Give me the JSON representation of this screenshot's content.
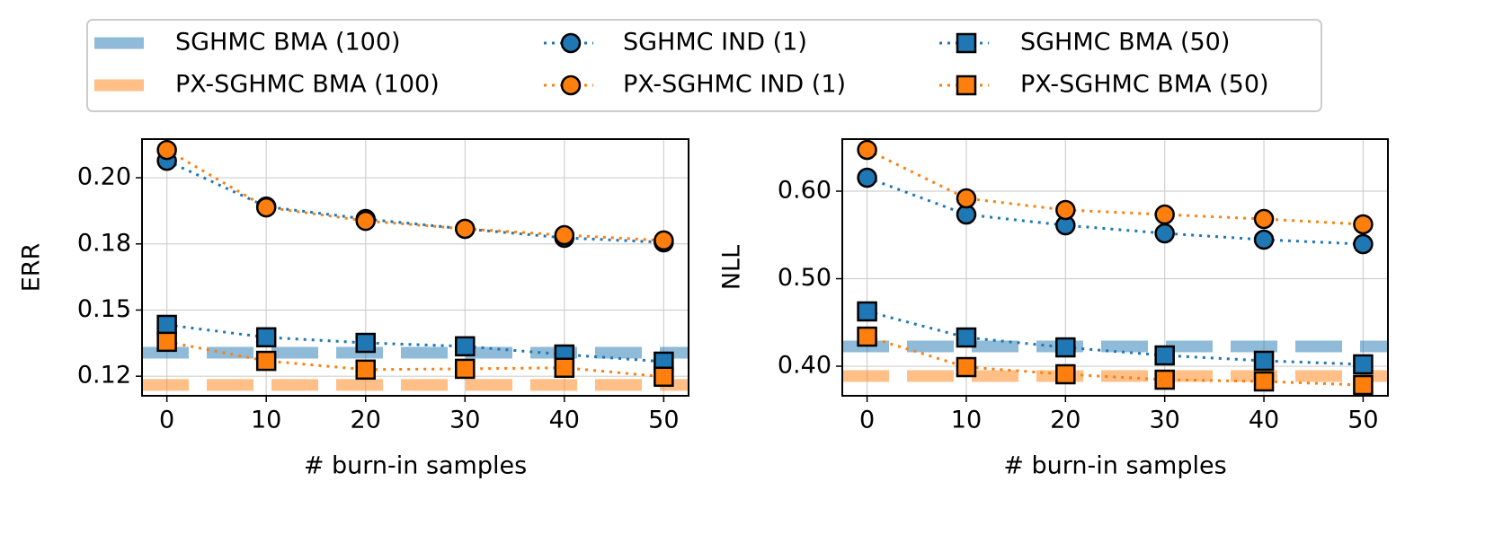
{
  "chart_data": [
    {
      "type": "line",
      "xlabel": "# burn-in samples",
      "ylabel": "ERR",
      "x": [
        0,
        10,
        20,
        30,
        40,
        50
      ],
      "xlim": [
        -2.5,
        52.5
      ],
      "xticks": [
        0,
        10,
        20,
        30,
        40,
        50
      ],
      "ylim": [
        0.1176,
        0.2146
      ],
      "yticks": [
        {
          "value": 0.125,
          "label": "0.12"
        },
        {
          "value": 0.15,
          "label": "0.15"
        },
        {
          "value": 0.175,
          "label": "0.18"
        },
        {
          "value": 0.2,
          "label": "0.20"
        }
      ],
      "grid": true,
      "legend": "top",
      "series": [
        {
          "name": "SGHMC BMA (100)",
          "color": "#1f77b4",
          "style": "band",
          "value": 0.1339
        },
        {
          "name": "PX-SGHMC BMA (100)",
          "color": "#ff7f0e",
          "style": "band",
          "value": 0.1217
        },
        {
          "name": "SGHMC IND (1)",
          "color": "#1f77b4",
          "style": "circle",
          "values": [
            0.2064,
            0.1891,
            0.1844,
            0.1807,
            0.1773,
            0.1756
          ]
        },
        {
          "name": "PX-SGHMC IND (1)",
          "color": "#ff7f0e",
          "style": "circle",
          "values": [
            0.2105,
            0.1888,
            0.1837,
            0.1807,
            0.1783,
            0.1763
          ]
        },
        {
          "name": "SGHMC BMA (50)",
          "color": "#1f77b4",
          "style": "square",
          "values": [
            0.1444,
            0.1397,
            0.1376,
            0.1363,
            0.1332,
            0.1305
          ]
        },
        {
          "name": "PX-SGHMC BMA (50)",
          "color": "#ff7f0e",
          "style": "square",
          "values": [
            0.138,
            0.1308,
            0.1275,
            0.1278,
            0.1282,
            0.1248
          ]
        }
      ]
    },
    {
      "type": "line",
      "xlabel": "# burn-in samples",
      "ylabel": "NLL",
      "x": [
        0,
        10,
        20,
        30,
        40,
        50
      ],
      "xlim": [
        -2.5,
        52.5
      ],
      "xticks": [
        0,
        10,
        20,
        30,
        40,
        50
      ],
      "ylim": [
        0.3662,
        0.6595
      ],
      "yticks": [
        {
          "value": 0.4,
          "label": "0.40"
        },
        {
          "value": 0.5,
          "label": "0.50"
        },
        {
          "value": 0.6,
          "label": "0.60"
        }
      ],
      "grid": true,
      "series": [
        {
          "color": "#1f77b4",
          "style": "band",
          "value": 0.4226
        },
        {
          "color": "#ff7f0e",
          "style": "band",
          "value": 0.3887
        },
        {
          "color": "#1f77b4",
          "style": "circle",
          "values": [
            0.6154,
            0.5733,
            0.561,
            0.5518,
            0.5446,
            0.5395
          ]
        },
        {
          "color": "#ff7f0e",
          "style": "circle",
          "values": [
            0.6472,
            0.5918,
            0.5785,
            0.5733,
            0.5682,
            0.5621
          ]
        },
        {
          "color": "#1f77b4",
          "style": "square",
          "values": [
            0.4626,
            0.4328,
            0.4215,
            0.4123,
            0.4062,
            0.4021
          ]
        },
        {
          "color": "#ff7f0e",
          "style": "square",
          "values": [
            0.4338,
            0.399,
            0.3908,
            0.3846,
            0.3826,
            0.3785
          ]
        }
      ]
    }
  ]
}
